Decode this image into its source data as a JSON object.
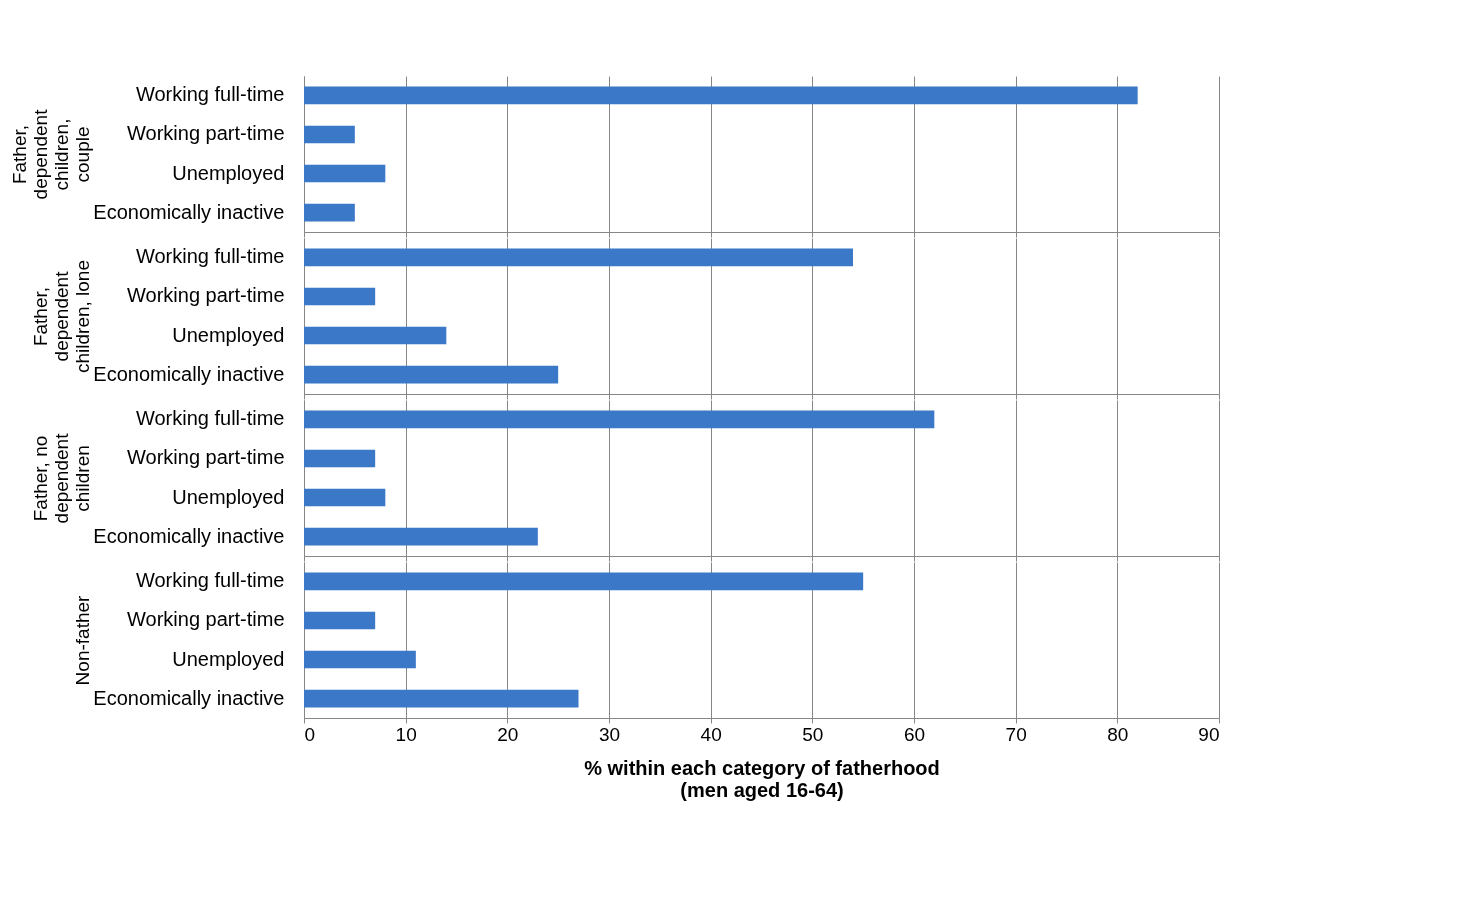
{
  "chart_data": [
    {
      "type": "bar",
      "orientation": "horizontal",
      "ylabel": "Father,\ndependent\nchildren,\ncouple",
      "categories": [
        "Working full-time",
        "Working part-time",
        "Unemployed",
        "Economically inactive"
      ],
      "values": [
        82,
        5,
        8,
        5
      ],
      "color": "#3b78c8",
      "xlim": [
        0,
        90
      ],
      "xticks": [
        0,
        10,
        20,
        30,
        40,
        50,
        60,
        70,
        80,
        90
      ],
      "grid": "x",
      "tick_labels": "y"
    },
    {
      "type": "bar",
      "orientation": "horizontal",
      "ylabel": "Father,\ndependent\nchildren, lone",
      "categories": [
        "Working full-time",
        "Working part-time",
        "Unemployed",
        "Economically inactive"
      ],
      "values": [
        54,
        7,
        14,
        25
      ],
      "color": "#3b78c8",
      "xlim": [
        0,
        90
      ],
      "xticks": [
        0,
        10,
        20,
        30,
        40,
        50,
        60,
        70,
        80,
        90
      ],
      "grid": "x",
      "tick_labels": "y"
    },
    {
      "type": "bar",
      "orientation": "horizontal",
      "ylabel": "Father, no\ndependent\nchildren",
      "categories": [
        "Working full-time",
        "Working part-time",
        "Unemployed",
        "Economically inactive"
      ],
      "values": [
        62,
        7,
        8,
        23
      ],
      "color": "#3b78c8",
      "xlim": [
        0,
        90
      ],
      "xticks": [
        0,
        10,
        20,
        30,
        40,
        50,
        60,
        70,
        80,
        90
      ],
      "grid": "x",
      "tick_labels": "y"
    },
    {
      "type": "bar",
      "orientation": "horizontal",
      "ylabel": "Non-father",
      "xlabel": "% within each category of fatherhood\n(men aged 16-64)",
      "categories": [
        "Working full-time",
        "Working part-time",
        "Unemployed",
        "Economically inactive"
      ],
      "values": [
        55,
        7,
        11,
        27
      ],
      "color": "#3b78c8",
      "xlim": [
        0,
        90
      ],
      "xticks": [
        0,
        10,
        20,
        30,
        40,
        50,
        60,
        70,
        80,
        90
      ],
      "grid": "x"
    }
  ]
}
